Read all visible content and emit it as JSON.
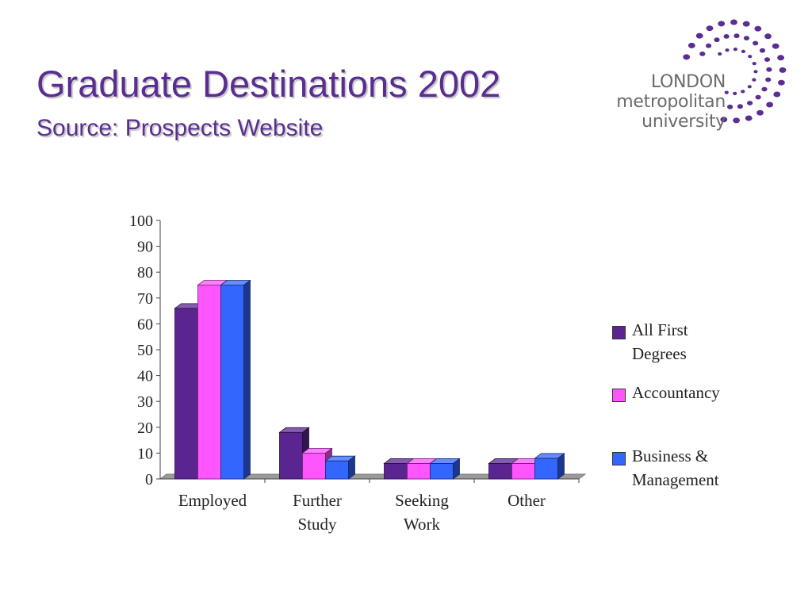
{
  "title": "Graduate Destinations 2002",
  "subtitle": "Source: Prospects Website",
  "logo": {
    "line1": "LONDON",
    "line2": "metropolitan",
    "line3": "university",
    "dot_color": "#5a2d91"
  },
  "chart_data": {
    "type": "bar",
    "categories": [
      "Employed",
      "Further Study",
      "Seeking Work",
      "Other"
    ],
    "category_lines": [
      [
        "Employed"
      ],
      [
        "Further",
        "Study"
      ],
      [
        "Seeking",
        "Work"
      ],
      [
        "Other"
      ]
    ],
    "series": [
      {
        "name": "All First Degrees",
        "name_lines": [
          "All First",
          "Degrees"
        ],
        "color": "#5a2591",
        "values": [
          66,
          18,
          6,
          6
        ]
      },
      {
        "name": "Accountancy",
        "name_lines": [
          "Accountancy"
        ],
        "color": "#ff55ff",
        "values": [
          75,
          10,
          6,
          6
        ]
      },
      {
        "name": "Business & Management",
        "name_lines": [
          "Business &",
          "Management"
        ],
        "color": "#3366ff",
        "values": [
          75,
          7,
          6,
          8
        ]
      }
    ],
    "ylim": [
      0,
      100
    ],
    "yticks": [
      0,
      10,
      20,
      30,
      40,
      50,
      60,
      70,
      80,
      90,
      100
    ],
    "grid": false,
    "legend_position": "right",
    "style": "3d"
  }
}
